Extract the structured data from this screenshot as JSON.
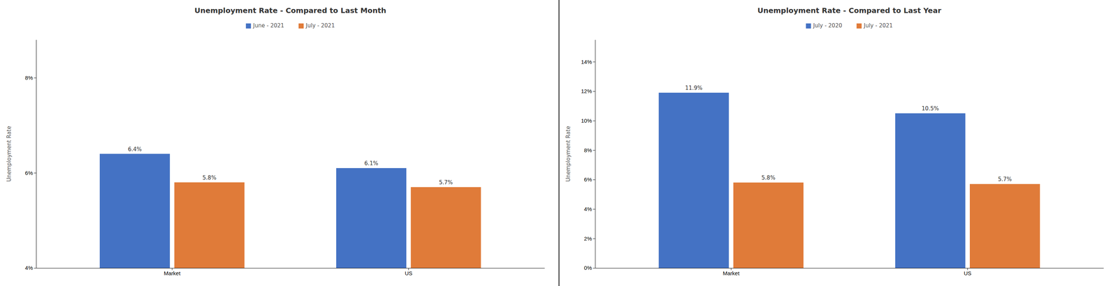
{
  "chart_data": [
    {
      "type": "bar",
      "title": "Unemployment Rate - Compared to Last Month",
      "categories": [
        "Market",
        "US"
      ],
      "series": [
        {
          "name": "June - 2021",
          "color": "#4472C4",
          "values": [
            6.4,
            6.1
          ],
          "value_labels": [
            "6.4%",
            "6.1%"
          ]
        },
        {
          "name": "July - 2021",
          "color": "#E07B39",
          "values": [
            5.8,
            5.7
          ],
          "value_labels": [
            "5.8%",
            "5.7%"
          ]
        }
      ],
      "ylabel": "Unemployment Rate",
      "ylim": [
        4,
        8.8
      ],
      "yticks": [
        {
          "value": 4,
          "label": "4%"
        },
        {
          "value": 6,
          "label": "6%"
        },
        {
          "value": 8,
          "label": "8%"
        }
      ],
      "grid": false,
      "legend": "top",
      "data_labels": true
    },
    {
      "type": "bar",
      "title": "Unemployment Rate - Compared to Last Year",
      "categories": [
        "Market",
        "US"
      ],
      "series": [
        {
          "name": "July - 2020",
          "color": "#4472C4",
          "values": [
            11.9,
            10.5
          ],
          "value_labels": [
            "11.9%",
            "10.5%"
          ]
        },
        {
          "name": "July - 2021",
          "color": "#E07B39",
          "values": [
            5.8,
            5.7
          ],
          "value_labels": [
            "5.8%",
            "5.7%"
          ]
        }
      ],
      "ylabel": "Unemployment Rate",
      "ylim": [
        0,
        15.5
      ],
      "yticks": [
        {
          "value": 0,
          "label": "0%"
        },
        {
          "value": 2,
          "label": "2%"
        },
        {
          "value": 4,
          "label": "4%"
        },
        {
          "value": 6,
          "label": "6%"
        },
        {
          "value": 8,
          "label": "8%"
        },
        {
          "value": 10,
          "label": "10%"
        },
        {
          "value": 12,
          "label": "12%"
        },
        {
          "value": 14,
          "label": "14%"
        }
      ],
      "grid": false,
      "legend": "top",
      "data_labels": true
    }
  ]
}
